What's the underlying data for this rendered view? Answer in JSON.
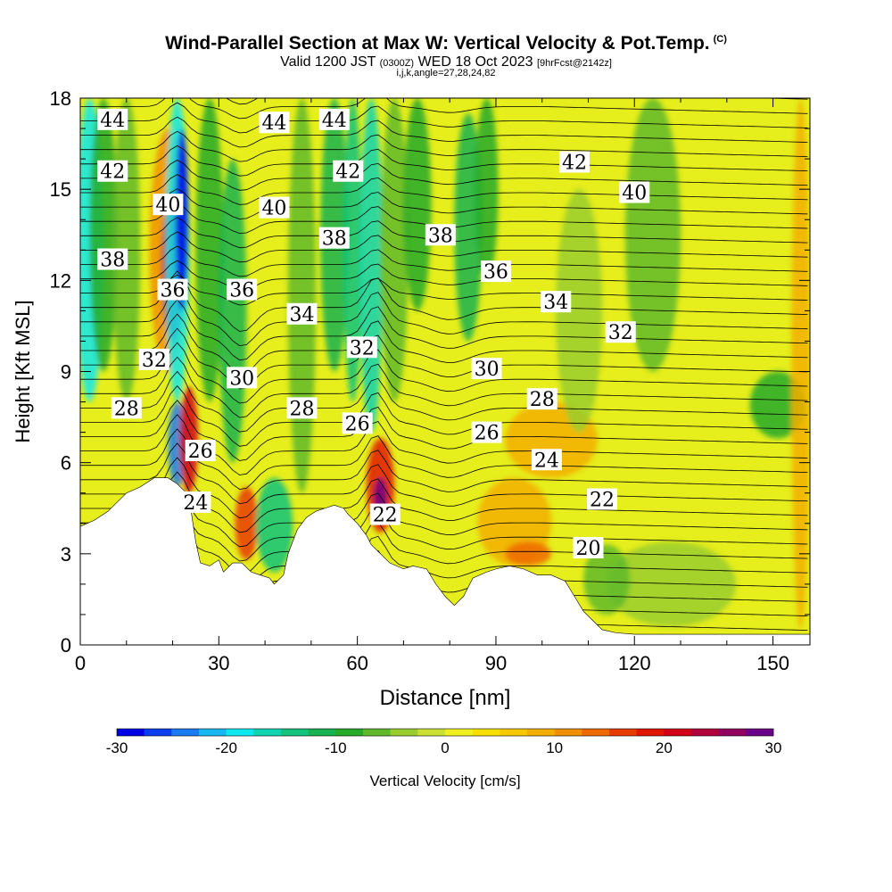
{
  "titles": {
    "main": "Wind-Parallel Section at Max W: Vertical Velocity & Pot.Temp.",
    "copyright": "(C)",
    "valid_a": "Valid 1200 JST",
    "valid_zulu": "(0300Z)",
    "valid_b": "WED 18 Oct 2023",
    "forecast": "[9hrFcst@2142z]",
    "indices": "i,j,k,angle=27,28,24,82"
  },
  "chart_data": {
    "type": "heatmap",
    "xlabel": "Distance [nm]",
    "ylabel": "Height [Kft MSL]",
    "xlim": [
      0,
      158
    ],
    "ylim": [
      0,
      18
    ],
    "x_ticks": [
      0,
      30,
      60,
      90,
      120,
      150
    ],
    "y_ticks": [
      0,
      3,
      6,
      9,
      12,
      15,
      18
    ],
    "colorbar": {
      "label": "Vertical Velocity [cm/s]",
      "min": -30,
      "max": 30,
      "ticks": [
        -30,
        -20,
        -10,
        0,
        10,
        20,
        30
      ],
      "colors": [
        "#0000e6",
        "#0b3ef0",
        "#1b7cf2",
        "#17b7f0",
        "#0de8ef",
        "#10d4b0",
        "#12c27d",
        "#15b24f",
        "#27a92a",
        "#5fb82a",
        "#99cc2e",
        "#cbe032",
        "#f0f020",
        "#f7e000",
        "#f5c800",
        "#f2ae00",
        "#f09000",
        "#ee6a00",
        "#e83b00",
        "#e01500",
        "#d00018",
        "#b0003c",
        "#900060",
        "#6a0088"
      ]
    },
    "terrain_kft": [
      [
        0,
        3.9
      ],
      [
        3,
        4.1
      ],
      [
        6,
        4.4
      ],
      [
        8,
        4.7
      ],
      [
        10,
        5.0
      ],
      [
        13,
        5.2
      ],
      [
        16,
        5.5
      ],
      [
        19,
        5.5
      ],
      [
        21,
        5.3
      ],
      [
        23,
        5.0
      ],
      [
        24,
        4.4
      ],
      [
        25,
        3.4
      ],
      [
        26,
        2.7
      ],
      [
        28,
        2.6
      ],
      [
        30,
        2.8
      ],
      [
        31,
        2.4
      ],
      [
        33,
        2.7
      ],
      [
        35,
        2.7
      ],
      [
        37,
        2.4
      ],
      [
        39,
        2.3
      ],
      [
        41,
        2.2
      ],
      [
        42,
        2.0
      ],
      [
        44,
        2.3
      ],
      [
        45,
        3.0
      ],
      [
        47,
        3.8
      ],
      [
        49,
        4.2
      ],
      [
        51,
        4.4
      ],
      [
        53,
        4.5
      ],
      [
        55,
        4.6
      ],
      [
        57,
        4.5
      ],
      [
        58,
        4.3
      ],
      [
        60,
        4.0
      ],
      [
        62,
        3.6
      ],
      [
        63,
        3.3
      ],
      [
        65,
        3.0
      ],
      [
        67,
        2.7
      ],
      [
        70,
        2.5
      ],
      [
        72,
        2.6
      ],
      [
        75,
        2.5
      ],
      [
        77,
        2.0
      ],
      [
        79,
        1.6
      ],
      [
        81,
        1.3
      ],
      [
        83,
        1.6
      ],
      [
        85,
        2.2
      ],
      [
        88,
        2.4
      ],
      [
        90,
        2.5
      ],
      [
        93,
        2.6
      ],
      [
        96,
        2.5
      ],
      [
        99,
        2.3
      ],
      [
        102,
        2.3
      ],
      [
        105,
        2.1
      ],
      [
        107,
        1.6
      ],
      [
        109,
        1.1
      ],
      [
        111,
        0.8
      ],
      [
        113,
        0.5
      ],
      [
        116,
        0.4
      ],
      [
        120,
        0.35
      ],
      [
        130,
        0.35
      ],
      [
        140,
        0.35
      ],
      [
        150,
        0.35
      ],
      [
        158,
        0.35
      ]
    ],
    "theta_contours_K": [
      20,
      22,
      24,
      26,
      28,
      30,
      32,
      34,
      36,
      38,
      40,
      42,
      44
    ],
    "contour_labels": [
      {
        "text": "44",
        "x": 7,
        "y": 17.3
      },
      {
        "text": "44",
        "x": 42,
        "y": 17.2
      },
      {
        "text": "44",
        "x": 55,
        "y": 17.3
      },
      {
        "text": "42",
        "x": 7,
        "y": 15.6
      },
      {
        "text": "42",
        "x": 58,
        "y": 15.6
      },
      {
        "text": "42",
        "x": 107,
        "y": 15.9
      },
      {
        "text": "40",
        "x": 19,
        "y": 14.5
      },
      {
        "text": "40",
        "x": 42,
        "y": 14.4
      },
      {
        "text": "40",
        "x": 120,
        "y": 14.9
      },
      {
        "text": "38",
        "x": 7,
        "y": 12.7
      },
      {
        "text": "38",
        "x": 55,
        "y": 13.4
      },
      {
        "text": "38",
        "x": 78,
        "y": 13.5
      },
      {
        "text": "36",
        "x": 20,
        "y": 11.7
      },
      {
        "text": "36",
        "x": 35,
        "y": 11.7
      },
      {
        "text": "36",
        "x": 90,
        "y": 12.3
      },
      {
        "text": "34",
        "x": 48,
        "y": 10.9
      },
      {
        "text": "34",
        "x": 103,
        "y": 11.3
      },
      {
        "text": "32",
        "x": 16,
        "y": 9.4
      },
      {
        "text": "32",
        "x": 61,
        "y": 9.8
      },
      {
        "text": "32",
        "x": 117,
        "y": 10.3
      },
      {
        "text": "30",
        "x": 35,
        "y": 8.8
      },
      {
        "text": "30",
        "x": 88,
        "y": 9.1
      },
      {
        "text": "28",
        "x": 10,
        "y": 7.8
      },
      {
        "text": "28",
        "x": 48,
        "y": 7.8
      },
      {
        "text": "28",
        "x": 100,
        "y": 8.1
      },
      {
        "text": "26",
        "x": 26,
        "y": 6.4
      },
      {
        "text": "26",
        "x": 60,
        "y": 7.3
      },
      {
        "text": "26",
        "x": 88,
        "y": 7.0
      },
      {
        "text": "24",
        "x": 25,
        "y": 4.7
      },
      {
        "text": "24",
        "x": 101,
        "y": 6.1
      },
      {
        "text": "22",
        "x": 66,
        "y": 4.3
      },
      {
        "text": "22",
        "x": 113,
        "y": 4.8
      },
      {
        "text": "20",
        "x": 110,
        "y": 3.2
      }
    ]
  }
}
